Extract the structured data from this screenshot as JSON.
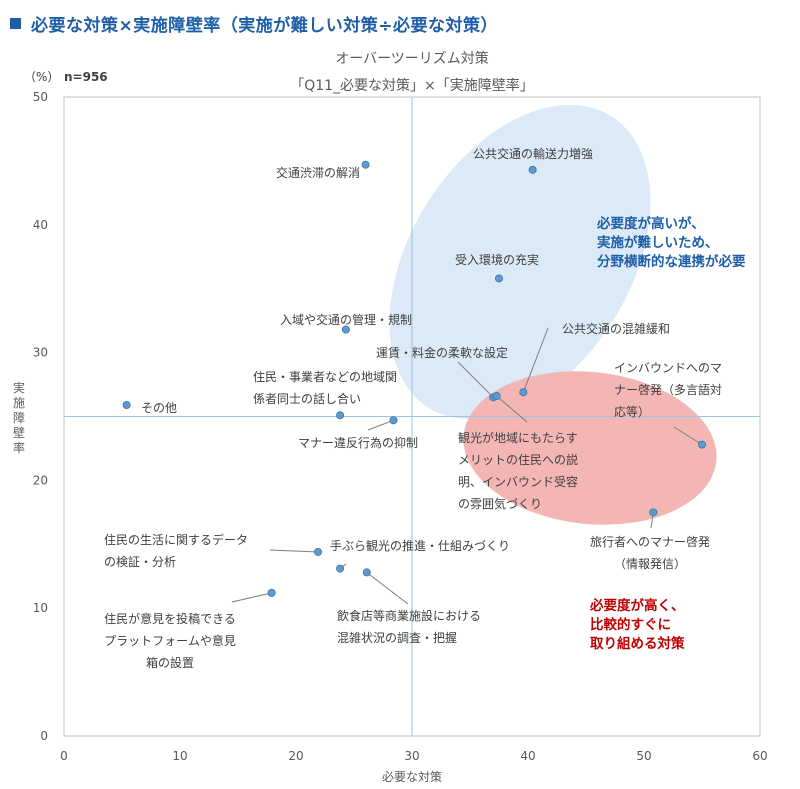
{
  "header": "必要な対策×実施障壁率（実施が難しい対策÷必要な対策）",
  "chart_data": {
    "type": "scatter",
    "title_line1": "オーバーツーリズム対策",
    "title_line2": "「Q11_必要な対策」×「実施障壁率」",
    "unit": "（%）",
    "n_label": "n=956",
    "xlabel": "必要な対策",
    "ylabel": "実施障壁率",
    "xlim": [
      0,
      60
    ],
    "ylim": [
      0,
      50
    ],
    "xticks": [
      0,
      10,
      20,
      30,
      40,
      50,
      60
    ],
    "yticks": [
      0,
      10,
      20,
      30,
      40,
      50
    ],
    "ref_x": 30,
    "ref_y": 25,
    "point_color": "#5b9bd5",
    "points": [
      {
        "x": 26.0,
        "y": 44.7,
        "label": [
          "交通渋滞の解消"
        ]
      },
      {
        "x": 40.4,
        "y": 44.3,
        "label": [
          "公共交通の輸送力増強"
        ]
      },
      {
        "x": 37.5,
        "y": 35.8,
        "label": [
          "受入環境の充実"
        ]
      },
      {
        "x": 24.3,
        "y": 31.8,
        "label": [
          "入域や交通の管理・規制"
        ]
      },
      {
        "x": 39.6,
        "y": 26.9,
        "label": [
          "公共交通の混雑緩和"
        ]
      },
      {
        "x": 37.0,
        "y": 26.5,
        "label": [
          "運賃・料金の柔軟な設定"
        ]
      },
      {
        "x": 37.3,
        "y": 26.6,
        "label": [
          "観光が地域にもたらす",
          "メリットの住民への説",
          "明、インバウンド受容",
          "の雰囲気づくり"
        ]
      },
      {
        "x": 5.4,
        "y": 25.9,
        "label": [
          "その他"
        ]
      },
      {
        "x": 23.8,
        "y": 25.1,
        "label": [
          "住民・事業者などの地域関",
          "係者同士の話し合い"
        ]
      },
      {
        "x": 28.4,
        "y": 24.7,
        "label": [
          "マナー違反行為の抑制"
        ]
      },
      {
        "x": 55.0,
        "y": 22.8,
        "label": [
          "インバウンドへのマ",
          "ナー啓発（多言語対",
          "応等）"
        ]
      },
      {
        "x": 50.8,
        "y": 17.5,
        "label": [
          "旅行者へのマナー啓発",
          "（情報発信）"
        ]
      },
      {
        "x": 21.9,
        "y": 14.4,
        "label": [
          "住民の生活に関するデータ",
          "の検証・分析"
        ]
      },
      {
        "x": 23.8,
        "y": 13.1,
        "label": [
          "手ぶら観光の推進・仕組みづくり"
        ]
      },
      {
        "x": 26.1,
        "y": 12.8,
        "label": [
          "飲食店等商業施設における",
          "混雑状況の調査・把握"
        ]
      },
      {
        "x": 17.9,
        "y": 11.2,
        "label": [
          "住民が意見を投稿できる",
          "プラットフォームや意見",
          "箱の設置"
        ]
      }
    ],
    "annotations": [
      {
        "lines": [
          "必要度が高いが、",
          "実施が難しいため、",
          "分野横断的な連携が必要"
        ],
        "color": "#1f5fa8",
        "ellipse_color": "#dce9f7"
      },
      {
        "lines": [
          "必要度が高く、",
          "比較的すぐに",
          "取り組める対策"
        ],
        "color": "#c00000",
        "ellipse_color": "#f4b5b5"
      }
    ]
  }
}
